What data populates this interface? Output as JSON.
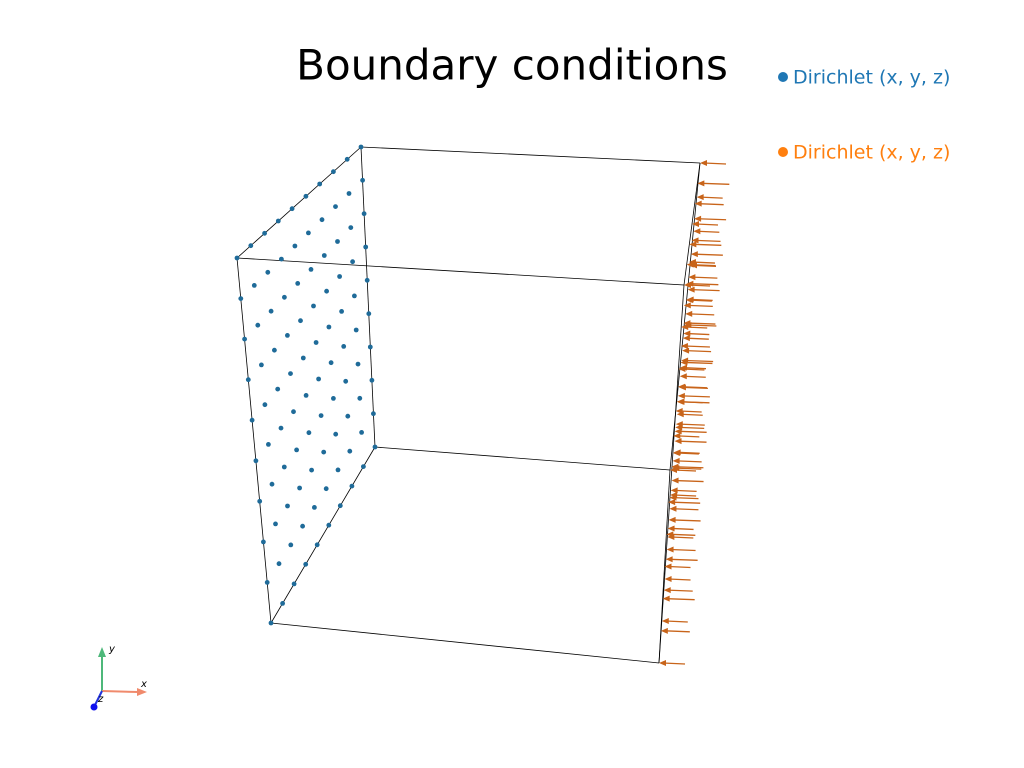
{
  "title": "Boundary conditions",
  "legend": [
    {
      "label": "Dirichlet  (x, y, z)",
      "color": "#1f77b4"
    },
    {
      "label": "Dirichlet  (x, y, z)",
      "color": "#ff7f0e"
    }
  ],
  "axes": {
    "x": "x",
    "y": "y",
    "z": "z"
  }
}
